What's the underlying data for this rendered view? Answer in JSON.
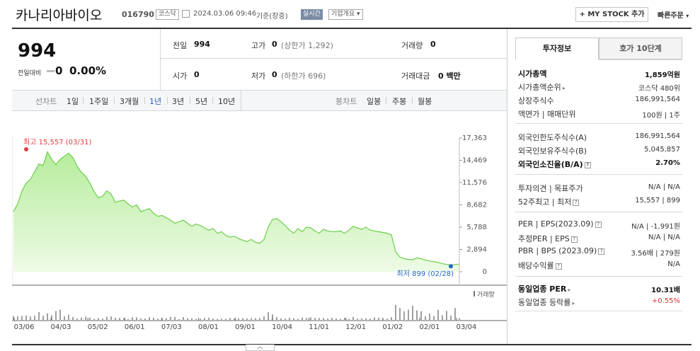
{
  "header": {
    "name": "카나리아바이오",
    "code": "016790",
    "market_tag": "코스닥",
    "date_text": "2024.03.06 09:46",
    "date_suffix": "기준(장중)",
    "live_badge": "실시간",
    "corp_summary": "기업개요",
    "mystock_button": "+ MY STOCK 추가",
    "quick_order": "빠른주문"
  },
  "price": {
    "current": "994",
    "change_label": "전일대비",
    "change_value": "0",
    "change_pct": "0.00%"
  },
  "summary": {
    "prev_label": "전일",
    "prev_value": "994",
    "high_label": "고가",
    "high_value": "0",
    "high_sub": "(상한가 1,292)",
    "volume_label": "거래량",
    "volume_value": "0",
    "open_label": "시가",
    "open_value": "0",
    "low_label": "저가",
    "low_value": "0",
    "low_sub": "(하한가 696)",
    "amount_label": "거래대금",
    "amount_value": "0 백만"
  },
  "period_bar": {
    "line_label": "선차트",
    "line_periods": [
      "1일",
      "1주일",
      "3개월",
      "1년",
      "3년",
      "5년",
      "10년"
    ],
    "selected": "1년",
    "candle_label": "봉차트",
    "candle_periods": [
      "일봉",
      "주봉",
      "월봉"
    ]
  },
  "chart_data": {
    "type": "area",
    "y_ticks": [
      "17,363",
      "14,469",
      "11,576",
      "8,682",
      "5,788",
      "2,894",
      "0"
    ],
    "ylim": [
      0,
      17363
    ],
    "x_ticks": [
      "03/06",
      "04/03",
      "05/02",
      "06/01",
      "07/03",
      "08/01",
      "09/01",
      "10/04",
      "11/01",
      "12/01",
      "01/02",
      "02/01",
      "03/04"
    ],
    "high_label": "최고 15,557 (03/31)",
    "low_label": "최저 899 (02/28)",
    "volume_legend": "거래량",
    "series": [
      {
        "values": [
          7800,
          8800,
          10500,
          11500,
          12000,
          13000,
          14000,
          13800,
          15557,
          14600,
          13900,
          14600,
          15000,
          15400,
          14800,
          13700,
          12900,
          12400,
          11500,
          10400,
          9600,
          9800,
          10500,
          10100,
          9000,
          9200,
          9300,
          8800,
          8400,
          8700,
          7800,
          8000,
          8200,
          7600,
          7200,
          7300,
          7000,
          6700,
          6300,
          6500,
          6700,
          6300,
          5900,
          6200,
          6000,
          5700,
          5400,
          5600,
          5000,
          5200,
          4700,
          4500,
          4600,
          4300,
          4100,
          3900,
          4200,
          3800,
          3700,
          4200,
          5800,
          6800,
          6900,
          6500,
          6000,
          5400,
          5000,
          5600,
          5200,
          5800,
          5700,
          5300,
          5000,
          5500,
          5300,
          5200,
          5200,
          5300,
          5000,
          5400,
          5900,
          5700,
          5500,
          5800,
          5400,
          5300,
          5200,
          5100,
          5000,
          4800,
          2600,
          1900,
          1700,
          1600,
          1550,
          1800,
          1700,
          1500,
          1400,
          1300,
          1200,
          1050,
          950,
          899,
          950,
          994
        ]
      }
    ],
    "volume": [
      0.23,
      0.21,
      0.23,
      0.26,
      0.2,
      0.24,
      0.46,
      0.24,
      0.38,
      0.27,
      0.52,
      0.59,
      0.21,
      0.3,
      0.17,
      0.08,
      0.13,
      0.19,
      0.13,
      0.06,
      0.11,
      0.08,
      0.18,
      0.2,
      0.12,
      0.12,
      0.11,
      0.04,
      0.15,
      0.15,
      0.09,
      0.08,
      0.16,
      0.13,
      0.07,
      0.1,
      0.09,
      0.18,
      0.17,
      0.04,
      0.17,
      0.11,
      0.09,
      0.06,
      0.07,
      0.11,
      0.13,
      0.08,
      0.05,
      0.07,
      0.06,
      0.11,
      0.08,
      0.09,
      0.11,
      0.09,
      0.1,
      0.1,
      0.1,
      0.2,
      0.45,
      0.32,
      0.17,
      0.09,
      0.08,
      0.13,
      0.1,
      0.06,
      0.14,
      0.11,
      0.15,
      0.12,
      0.11,
      0.11,
      0.08,
      0.12,
      0.09,
      0.06,
      0.12,
      0.06,
      0.17,
      0.07,
      0.09,
      0.09,
      0.08,
      0.14,
      0.13,
      0.07,
      0.07,
      0.16,
      0.89,
      0.7,
      0.51,
      0.6,
      0.83,
      0.56,
      0.51,
      0.22,
      0.38,
      0.23,
      0.59,
      0.27,
      0.53,
      0.25,
      0.69,
      0.1
    ],
    "colors": {
      "line": "#6bcf4a",
      "area_top": "#b6ec9c",
      "area_bottom": "#eefbe6",
      "high": "#e03c3c",
      "low": "#2167c6",
      "volume": "#777777"
    }
  },
  "right_panel": {
    "tab_invest": "투자정보",
    "tab_order": "호가 10단계",
    "rows": [
      {
        "label": "시가총액",
        "value": "1,859억원"
      },
      {
        "label": "시가총액순위",
        "value": "코스닥 480위"
      },
      {
        "label": "상장주식수",
        "value": "186,991,564"
      },
      {
        "label": "액면가 | 매매단위",
        "value": "100원 | 1주"
      },
      {
        "label": "외국인한도주식수(A)",
        "value": "186,991,564"
      },
      {
        "label": "외국인보유주식수(B)",
        "value": "5,045,857"
      },
      {
        "label": "외국인소진율(B/A)",
        "value": "2.70%"
      },
      {
        "label": "투자의견 | 목표주가",
        "value": "N/A | N/A"
      },
      {
        "label": "52주최고 | 최저",
        "value": "15,557 | 899"
      },
      {
        "label": "PER | EPS(2023.09)",
        "value": "N/A | -1,991원"
      },
      {
        "label": "추정PER | EPS",
        "value": "N/A | N/A"
      },
      {
        "label": "PBR | BPS (2023.09)",
        "value": "3.56배 | 279원"
      },
      {
        "label": "배당수익률",
        "value": "N/A"
      },
      {
        "label": "동일업종 PER",
        "value": "10.31배"
      },
      {
        "label": "동일업종 등락률",
        "value": "+0.55%"
      }
    ]
  }
}
